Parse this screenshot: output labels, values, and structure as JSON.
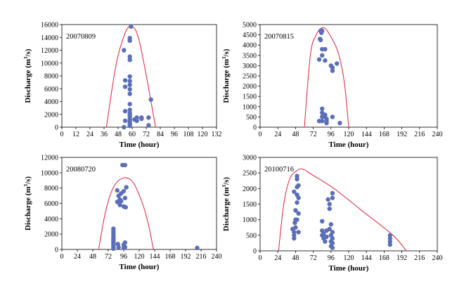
{
  "chart_data": [
    {
      "type": "scatter",
      "title": "20070809",
      "xlabel": "Time (hour)",
      "ylabel_main": "Discharge (m",
      "ylabel_sup": "3",
      "ylabel_tail": "/s)",
      "xlim": [
        0,
        132
      ],
      "ylim": [
        0,
        16000
      ],
      "xticks": [
        "0",
        "12",
        "24",
        "36",
        "48",
        "60",
        "72",
        "84",
        "96",
        "108",
        "120",
        "132"
      ],
      "yticks": [
        "0",
        "2000",
        "4000",
        "6000",
        "8000",
        "10000",
        "12000",
        "14000",
        "16000"
      ],
      "grid": false,
      "legend": "none",
      "colors": {
        "points": "#5b6fb8",
        "curve": "#e8304a"
      },
      "series": [
        {
          "type": "scatter",
          "points": [
            [
              53,
              0
            ],
            [
              54,
              2500
            ],
            [
              54,
              6300
            ],
            [
              54,
              7300
            ],
            [
              53,
              12000
            ],
            [
              54,
              1000
            ],
            [
              58,
              200
            ],
            [
              58,
              400
            ],
            [
              58,
              600
            ],
            [
              58,
              800
            ],
            [
              58,
              1000
            ],
            [
              58,
              1300
            ],
            [
              58,
              1700
            ],
            [
              58,
              2000
            ],
            [
              58,
              2200
            ],
            [
              58,
              2700
            ],
            [
              58,
              3600
            ],
            [
              58,
              5200
            ],
            [
              58,
              5900
            ],
            [
              58,
              6600
            ],
            [
              58,
              7200
            ],
            [
              58,
              7900
            ],
            [
              58,
              10500
            ],
            [
              58,
              11000
            ],
            [
              58,
              13500
            ],
            [
              58,
              13900
            ],
            [
              59,
              15700
            ],
            [
              62,
              1200
            ],
            [
              64,
              1500
            ],
            [
              64,
              1000
            ],
            [
              68,
              1300
            ],
            [
              68,
              1500
            ],
            [
              74,
              300
            ],
            [
              74,
              1500
            ],
            [
              76,
              4300
            ]
          ]
        },
        {
          "type": "line",
          "points": [
            [
              38,
              0
            ],
            [
              46,
              9500
            ],
            [
              53,
              14200
            ],
            [
              58,
              15700
            ],
            [
              64,
              14700
            ],
            [
              70,
              10000
            ],
            [
              80,
              0
            ]
          ]
        }
      ]
    },
    {
      "type": "scatter",
      "title": "20070815",
      "xlabel": "Time (hour)",
      "ylabel_main": "Discharge (m",
      "ylabel_sup": "3",
      "ylabel_tail": "/s)",
      "xlim": [
        0,
        240
      ],
      "ylim": [
        0,
        5000
      ],
      "xticks": [
        "0",
        "24",
        "48",
        "72",
        "96",
        "120",
        "144",
        "168",
        "192",
        "216",
        "240"
      ],
      "yticks": [
        "0",
        "500",
        "1000",
        "1500",
        "2000",
        "2500",
        "3000",
        "3500",
        "4000",
        "4500",
        "5000"
      ],
      "grid": false,
      "legend": "none",
      "colors": {
        "points": "#5b6fb8",
        "curve": "#e8304a"
      },
      "series": [
        {
          "type": "scatter",
          "points": [
            [
              80,
              300
            ],
            [
              80,
              3300
            ],
            [
              81,
              4300
            ],
            [
              82,
              4250
            ],
            [
              82,
              4700
            ],
            [
              83,
              4600
            ],
            [
              84,
              4700
            ],
            [
              84,
              3800
            ],
            [
              84,
              3500
            ],
            [
              84,
              900
            ],
            [
              84,
              700
            ],
            [
              84,
              500
            ],
            [
              84,
              300
            ],
            [
              88,
              3800
            ],
            [
              88,
              3250
            ],
            [
              88,
              500
            ],
            [
              88,
              600
            ],
            [
              90,
              400
            ],
            [
              90,
              300
            ],
            [
              90,
              200
            ],
            [
              96,
              3000
            ],
            [
              98,
              2900
            ],
            [
              98,
              2750
            ],
            [
              98,
              500
            ],
            [
              104,
              3100
            ],
            [
              108,
              200
            ]
          ]
        },
        {
          "type": "line",
          "points": [
            [
              60,
              0
            ],
            [
              68,
              3500
            ],
            [
              76,
              4500
            ],
            [
              86,
              4850
            ],
            [
              96,
              4400
            ],
            [
              106,
              3600
            ],
            [
              114,
              2200
            ],
            [
              120,
              0
            ]
          ]
        }
      ]
    },
    {
      "type": "scatter",
      "title": "20080720",
      "xlabel": "Time (hour)",
      "ylabel_main": "Discharge (m",
      "ylabel_sup": "3",
      "ylabel_tail": "/s)",
      "xlim": [
        0,
        240
      ],
      "ylim": [
        0,
        12000
      ],
      "xticks": [
        "0",
        "24",
        "48",
        "72",
        "96",
        "120",
        "144",
        "168",
        "192",
        "216",
        "240"
      ],
      "yticks": [
        "0",
        "2000",
        "4000",
        "6000",
        "8000",
        "10000",
        "12000"
      ],
      "grid": false,
      "legend": "none",
      "colors": {
        "points": "#5b6fb8",
        "curve": "#e8304a"
      },
      "series": [
        {
          "type": "scatter",
          "points": [
            [
              80,
              100
            ],
            [
              80,
              300
            ],
            [
              80,
              500
            ],
            [
              80,
              700
            ],
            [
              80,
              900
            ],
            [
              80,
              1100
            ],
            [
              80,
              1300
            ],
            [
              80,
              1500
            ],
            [
              80,
              1800
            ],
            [
              80,
              2100
            ],
            [
              80,
              2400
            ],
            [
              80,
              2700
            ],
            [
              86,
              7700
            ],
            [
              86,
              6200
            ],
            [
              87,
              700
            ],
            [
              88,
              300
            ],
            [
              88,
              7000
            ],
            [
              90,
              6500
            ],
            [
              90,
              5800
            ],
            [
              92,
              6300
            ],
            [
              92,
              7300
            ],
            [
              94,
              11000
            ],
            [
              96,
              7600
            ],
            [
              96,
              5600
            ],
            [
              98,
              11000
            ],
            [
              98,
              6700
            ],
            [
              99,
              5500
            ],
            [
              100,
              8100
            ],
            [
              96,
              600
            ],
            [
              98,
              900
            ],
            [
              98,
              300
            ],
            [
              96,
              200
            ],
            [
              210,
              200
            ]
          ]
        },
        {
          "type": "line",
          "points": [
            [
              57,
              0
            ],
            [
              68,
              5000
            ],
            [
              80,
              8100
            ],
            [
              95,
              9300
            ],
            [
              110,
              8800
            ],
            [
              125,
              6000
            ],
            [
              135,
              3000
            ],
            [
              142,
              0
            ]
          ]
        }
      ]
    },
    {
      "type": "scatter",
      "title": "20100716",
      "xlabel": "Time (hour)",
      "ylabel_main": "Discharge (m",
      "ylabel_sup": "3",
      "ylabel_tail": "/s)",
      "xlim": [
        0,
        240
      ],
      "ylim": [
        0,
        3000
      ],
      "xticks": [
        "0",
        "24",
        "48",
        "72",
        "96",
        "120",
        "144",
        "168",
        "192",
        "216",
        "240"
      ],
      "yticks": [
        "0",
        "500",
        "1000",
        "1500",
        "2000",
        "2500",
        "3000"
      ],
      "grid": false,
      "legend": "none",
      "colors": {
        "points": "#5b6fb8",
        "curve": "#e8304a"
      },
      "series": [
        {
          "type": "scatter",
          "points": [
            [
              44,
              700
            ],
            [
              46,
              1900
            ],
            [
              46,
              600
            ],
            [
              46,
              500
            ],
            [
              46,
              400
            ],
            [
              47,
              900
            ],
            [
              48,
              1000
            ],
            [
              48,
              1300
            ],
            [
              48,
              750
            ],
            [
              50,
              2400
            ],
            [
              50,
              2300
            ],
            [
              50,
              2050
            ],
            [
              50,
              1800
            ],
            [
              50,
              1550
            ],
            [
              50,
              1000
            ],
            [
              52,
              2100
            ],
            [
              52,
              1700
            ],
            [
              52,
              1200
            ],
            [
              52,
              600
            ],
            [
              84,
              950
            ],
            [
              84,
              650
            ],
            [
              84,
              500
            ],
            [
              86,
              400
            ],
            [
              86,
              550
            ],
            [
              88,
              300
            ],
            [
              90,
              450
            ],
            [
              90,
              650
            ],
            [
              92,
              1650
            ],
            [
              94,
              1500
            ],
            [
              94,
              1350
            ],
            [
              94,
              700
            ],
            [
              96,
              500
            ],
            [
              96,
              300
            ],
            [
              96,
              150
            ],
            [
              96,
              850
            ],
            [
              98,
              1850
            ],
            [
              98,
              1700
            ],
            [
              98,
              600
            ],
            [
              98,
              400
            ],
            [
              98,
              250
            ],
            [
              98,
              100
            ],
            [
              176,
              500
            ],
            [
              176,
              400
            ],
            [
              176,
              300
            ],
            [
              176,
              200
            ]
          ]
        },
        {
          "type": "line",
          "points": [
            [
              25,
              0
            ],
            [
              32,
              1500
            ],
            [
              40,
              2300
            ],
            [
              50,
              2580
            ],
            [
              58,
              2620
            ],
            [
              70,
              2450
            ],
            [
              100,
              2000
            ],
            [
              140,
              1250
            ],
            [
              180,
              500
            ],
            [
              198,
              0
            ]
          ]
        }
      ]
    }
  ]
}
